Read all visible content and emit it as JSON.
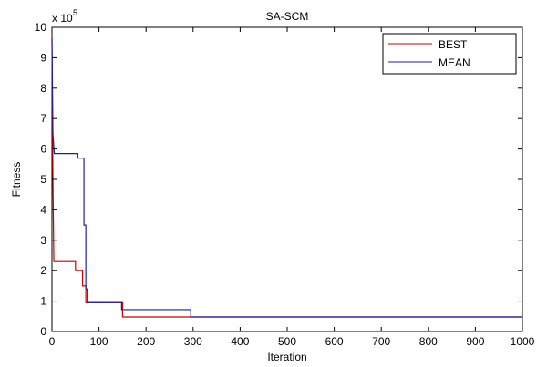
{
  "chart_data": {
    "type": "line",
    "title": "SA-SCM",
    "xlabel": "Iteration",
    "ylabel": "Fitness",
    "y_multiplier_label": "x 10",
    "y_multiplier_exponent": "5",
    "xlim": [
      0,
      1000
    ],
    "ylim": [
      0,
      10
    ],
    "xticks": [
      0,
      100,
      200,
      300,
      400,
      500,
      600,
      700,
      800,
      900,
      1000
    ],
    "yticks": [
      0,
      1,
      2,
      3,
      4,
      5,
      6,
      7,
      8,
      9,
      10
    ],
    "grid": false,
    "legend_position": "top-right",
    "series": [
      {
        "name": "BEST",
        "color": "#cc0000",
        "x": [
          0,
          2,
          4,
          50,
          50,
          65,
          65,
          72,
          72,
          150,
          150,
          1000
        ],
        "y": [
          9.7,
          5.0,
          2.3,
          2.3,
          2.0,
          2.0,
          1.5,
          1.5,
          0.95,
          0.95,
          0.48,
          0.48
        ]
      },
      {
        "name": "MEAN",
        "color": "#1f1f9e",
        "x": [
          0,
          2,
          5,
          55,
          55,
          68,
          68,
          72,
          72,
          75,
          75,
          148,
          148,
          295,
          295,
          1000
        ],
        "y": [
          9.65,
          6.5,
          5.85,
          5.85,
          5.7,
          5.7,
          3.5,
          3.5,
          1.4,
          1.4,
          0.95,
          0.95,
          0.72,
          0.72,
          0.48,
          0.48
        ]
      }
    ]
  }
}
